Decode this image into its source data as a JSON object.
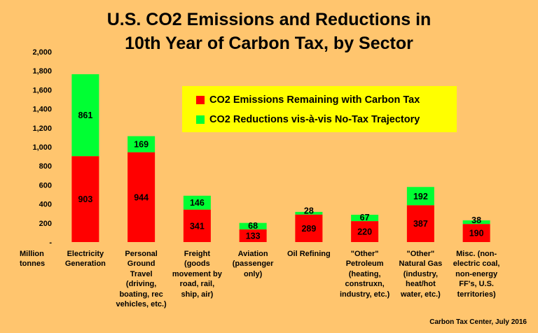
{
  "title_line1": "U.S. CO2 Emissions and Reductions in",
  "title_line2": "10th Year of Carbon Tax, by Sector",
  "source": "Carbon Tax Center, July 2016",
  "unit_label": [
    "Million",
    "tonnes"
  ],
  "colors": {
    "remaining": "#FF0000",
    "reductions": "#00FF33",
    "background": "#FFC56E",
    "legend_bg": "#FFFF00"
  },
  "chart_data": {
    "type": "bar",
    "stacked": true,
    "title": "U.S. CO2 Emissions and Reductions in 10th Year of Carbon Tax, by Sector",
    "ylim": [
      0,
      2000
    ],
    "yticks": [
      0,
      200,
      400,
      600,
      800,
      1000,
      1200,
      1400,
      1600,
      1800,
      2000
    ],
    "ytick_labels": [
      "-",
      "200",
      "400",
      "600",
      "800",
      "1,000",
      "1,200",
      "1,400",
      "1,600",
      "1,800",
      "2,000"
    ],
    "ylabel": "Million tonnes",
    "legend_position": "top-right",
    "categories": [
      [
        "Electricity",
        "Generation"
      ],
      [
        "Personal",
        "Ground",
        "Travel",
        "(driving,",
        "boating, rec",
        "vehicles, etc.)"
      ],
      [
        "Freight",
        "(goods",
        "movement by",
        "road, rail,",
        "ship, air)"
      ],
      [
        "Aviation",
        "(passenger",
        "only)"
      ],
      [
        "Oil Refining"
      ],
      [
        "\"Other\"",
        "Petroleum",
        "(heating,",
        "construxn,",
        "industry, etc.)"
      ],
      [
        "\"Other\"",
        "Natural Gas",
        "(industry,",
        "heat/hot",
        "water, etc.)"
      ],
      [
        "Misc. (non-",
        "electric coal,",
        "non-energy",
        "FF's, U.S.",
        "territories)"
      ]
    ],
    "series": [
      {
        "name": "CO2 Emissions Remaining with Carbon Tax",
        "values": [
          903,
          944,
          341,
          133,
          289,
          220,
          387,
          190
        ]
      },
      {
        "name": "CO2 Reductions vis-à-vis No-Tax Trajectory",
        "values": [
          861,
          169,
          146,
          68,
          28,
          67,
          192,
          38
        ]
      }
    ]
  }
}
